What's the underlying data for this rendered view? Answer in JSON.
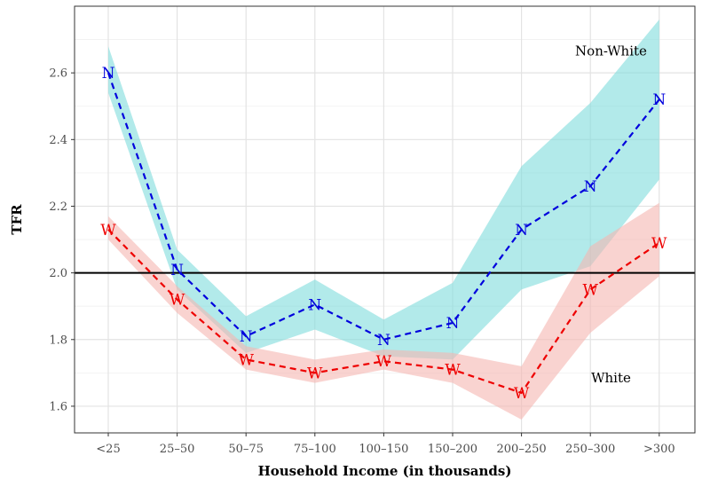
{
  "chart_data": {
    "type": "line",
    "xlabel": "Household Income (in thousands)",
    "ylabel": "TFR",
    "categories": [
      "<25",
      "25–50",
      "50–75",
      "75–100",
      "100–150",
      "150–200",
      "200–250",
      "250–300",
      ">300"
    ],
    "ylim": [
      1.52,
      2.8
    ],
    "yticks": [
      1.6,
      1.8,
      2.0,
      2.2,
      2.4,
      2.6
    ],
    "ytick_labels": [
      "1.6",
      "1.8",
      "2.0",
      "2.2",
      "2.4",
      "2.6"
    ],
    "reference_line": 2.0,
    "grid": true,
    "series": [
      {
        "name": "Non-White",
        "marker": "N",
        "line_color": "#0000dd",
        "band_color": "#7fdcdc",
        "values": [
          2.6,
          2.01,
          1.81,
          1.905,
          1.8,
          1.85,
          2.13,
          2.26,
          2.52
        ],
        "lower": [
          2.54,
          1.95,
          1.76,
          1.83,
          1.75,
          1.74,
          1.95,
          2.02,
          2.28
        ],
        "upper": [
          2.68,
          2.07,
          1.87,
          1.98,
          1.86,
          1.97,
          2.32,
          2.51,
          2.76
        ]
      },
      {
        "name": "White",
        "marker": "W",
        "line_color": "#ee0000",
        "band_color": "#f5b5b0",
        "values": [
          2.13,
          1.92,
          1.74,
          1.7,
          1.735,
          1.71,
          1.64,
          1.95,
          2.09
        ],
        "lower": [
          2.1,
          1.88,
          1.71,
          1.67,
          1.71,
          1.67,
          1.56,
          1.82,
          1.99
        ],
        "upper": [
          2.17,
          1.96,
          1.78,
          1.74,
          1.77,
          1.76,
          1.72,
          2.08,
          2.21
        ]
      }
    ],
    "annotations": [
      {
        "text": "Non-White",
        "x": 7.3,
        "y": 2.665
      },
      {
        "text": "White",
        "x": 7.3,
        "y": 1.685
      }
    ]
  }
}
